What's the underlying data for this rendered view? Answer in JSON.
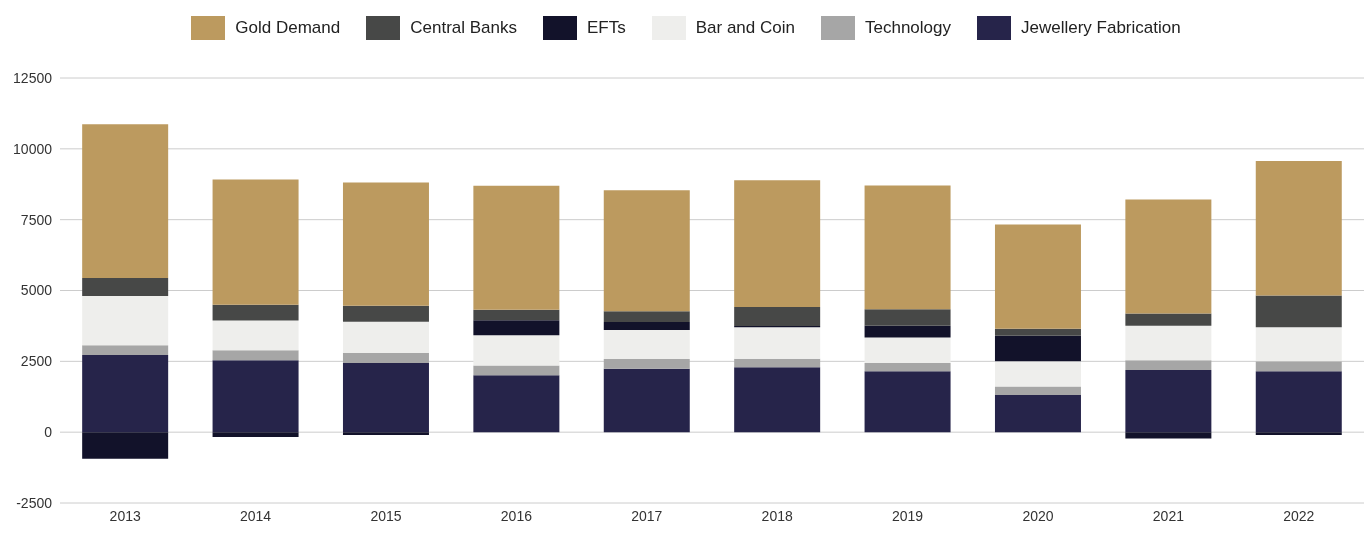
{
  "chart_data": {
    "type": "bar",
    "stacked": true,
    "categories": [
      "2013",
      "2014",
      "2015",
      "2016",
      "2017",
      "2018",
      "2019",
      "2020",
      "2021",
      "2022"
    ],
    "series": [
      {
        "name": "Jewellery Fabrication",
        "color": "#26244a",
        "values": [
          2720,
          2540,
          2440,
          2010,
          2240,
          2290,
          2150,
          1310,
          2190,
          2150
        ]
      },
      {
        "name": "Technology",
        "color": "#a6a6a6",
        "values": [
          350,
          350,
          350,
          340,
          340,
          300,
          290,
          300,
          350,
          350
        ]
      },
      {
        "name": "Bar and Coin",
        "color": "#eeeeec",
        "values": [
          1740,
          1050,
          1110,
          1070,
          1030,
          1110,
          900,
          890,
          1220,
          1200
        ]
      },
      {
        "name": "EFTs",
        "color": "#12122a",
        "values": [
          -940,
          -170,
          -100,
          530,
          280,
          50,
          420,
          900,
          -220,
          -100
        ]
      },
      {
        "name": "Central Banks",
        "color": "#474847",
        "values": [
          630,
          560,
          560,
          370,
          380,
          670,
          580,
          250,
          430,
          1120
        ]
      },
      {
        "name": "Gold Demand",
        "color": "#bc9a5f",
        "values": [
          5430,
          4420,
          4350,
          4380,
          4270,
          4470,
          4370,
          3680,
          4020,
          4750
        ]
      }
    ],
    "ylim": [
      -2500,
      12500
    ],
    "yticks": [
      -2500,
      0,
      2500,
      5000,
      7500,
      10000,
      12500
    ],
    "grid": "y",
    "legend": "top"
  }
}
